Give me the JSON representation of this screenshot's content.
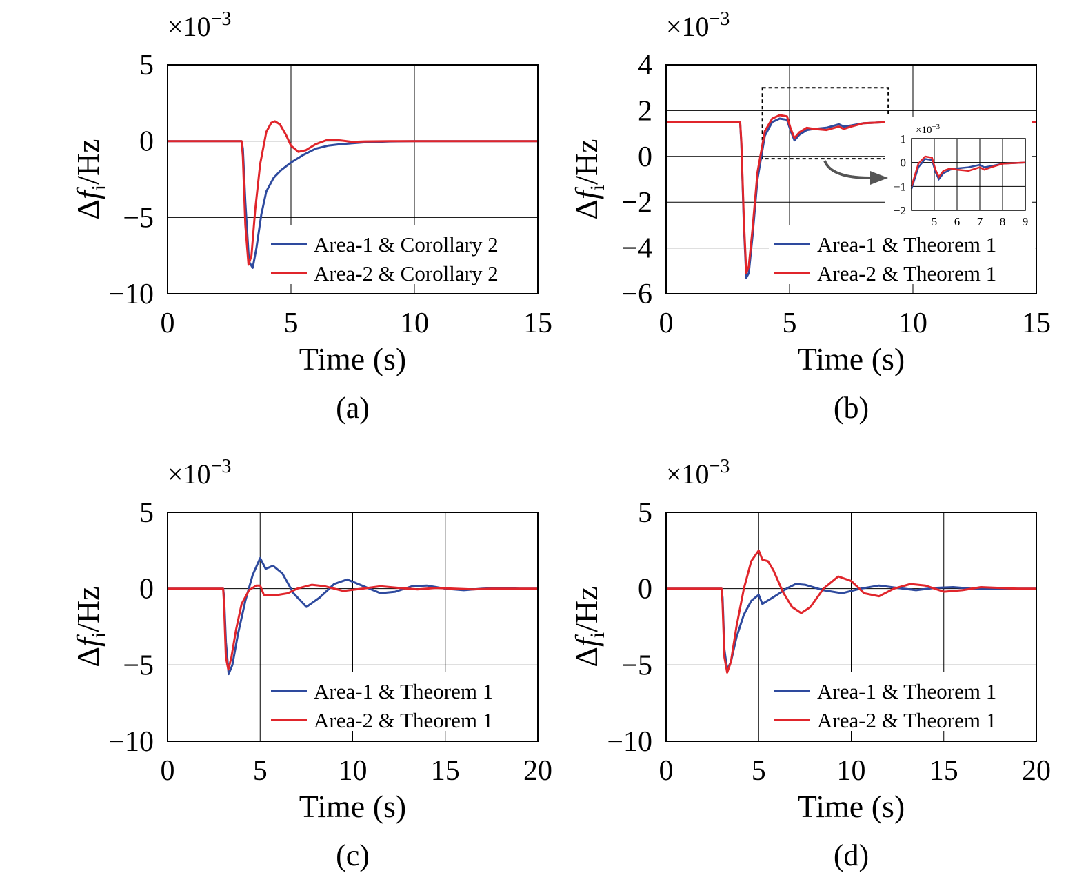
{
  "colors": {
    "area1": "#2e4a9e",
    "area2": "#e0252b",
    "axis": "#000000",
    "grid": "#000000"
  },
  "chart_data": [
    {
      "id": "a",
      "type": "line",
      "panel_label": "(a)",
      "scale_label": "×10",
      "scale_exp": "−3",
      "ylabel": "Δf",
      "ylabel_sub": "i",
      "ylabel_unit": "/Hz",
      "xlabel": "Time (s)",
      "xlim": [
        0,
        15
      ],
      "ylim": [
        -10,
        5
      ],
      "xticks": [
        0,
        5,
        10,
        15
      ],
      "xtick_labels": [
        "0",
        "5",
        "10",
        "15"
      ],
      "yticks": [
        -10,
        -5,
        0,
        5
      ],
      "ytick_labels": [
        "−10",
        "−5",
        "0",
        "5"
      ],
      "grid": true,
      "legend_position": "bottom-right",
      "series": [
        {
          "name": "Area-1 & Corollary 2",
          "color_key": "area1",
          "x": [
            0,
            3.0,
            3.05,
            3.15,
            3.3,
            3.45,
            3.6,
            3.8,
            4.0,
            4.3,
            4.6,
            5.0,
            5.5,
            6.0,
            6.5,
            7.0,
            8.0,
            9.0,
            10.0,
            12.0,
            15.0
          ],
          "y": [
            0,
            0,
            -0.5,
            -4.0,
            -7.9,
            -8.3,
            -7.0,
            -4.8,
            -3.3,
            -2.4,
            -1.9,
            -1.4,
            -0.9,
            -0.5,
            -0.3,
            -0.2,
            -0.08,
            -0.02,
            0,
            0,
            0
          ]
        },
        {
          "name": "Area-2 & Corollary 2",
          "color_key": "area2",
          "x": [
            0,
            3.0,
            3.05,
            3.15,
            3.28,
            3.4,
            3.55,
            3.75,
            4.0,
            4.2,
            4.35,
            4.55,
            4.8,
            5.0,
            5.3,
            5.6,
            6.0,
            6.5,
            7.0,
            7.5,
            8.0,
            9.0,
            10.0,
            15.0
          ],
          "y": [
            0,
            0,
            -1.0,
            -5.5,
            -8.1,
            -7.5,
            -4.5,
            -1.5,
            0.6,
            1.2,
            1.3,
            1.1,
            0.4,
            -0.3,
            -0.7,
            -0.6,
            -0.2,
            0.1,
            0.05,
            -0.05,
            -0.02,
            0,
            0,
            0
          ]
        }
      ]
    },
    {
      "id": "b",
      "type": "line",
      "panel_label": "(b)",
      "scale_label": "×10",
      "scale_exp": "−3",
      "ylabel": "Δf",
      "ylabel_sub": "i",
      "ylabel_unit": "/Hz",
      "xlabel": "Time (s)",
      "xlim": [
        0,
        15
      ],
      "ylim": [
        -6,
        4
      ],
      "xticks": [
        0,
        5,
        10,
        15
      ],
      "xtick_labels": [
        "0",
        "5",
        "10",
        "15"
      ],
      "yticks": [
        -6,
        -4,
        -2,
        0,
        2,
        4
      ],
      "ytick_labels": [
        "−6",
        "−4",
        "−2",
        "0",
        "2",
        "4"
      ],
      "grid": true,
      "legend_position": "bottom-right",
      "series": [
        {
          "name": "Area-1 & Theorem 1",
          "color_key": "area1",
          "x": [
            0,
            3.0,
            3.05,
            3.15,
            3.25,
            3.35,
            3.5,
            3.7,
            4.0,
            4.3,
            4.6,
            4.9,
            5.05,
            5.2,
            5.4,
            5.7,
            6.0,
            6.5,
            7.0,
            7.2,
            7.5,
            8.0,
            9.0,
            10.0,
            15.0
          ],
          "y": [
            1.5,
            1.5,
            0.5,
            -3.0,
            -5.3,
            -5.1,
            -3.5,
            -1.0,
            0.9,
            1.5,
            1.65,
            1.6,
            1.1,
            0.7,
            0.95,
            1.15,
            1.2,
            1.25,
            1.4,
            1.3,
            1.35,
            1.45,
            1.5,
            1.5,
            1.5
          ]
        },
        {
          "name": "Area-2 & Theorem 1",
          "color_key": "area2",
          "x": [
            0,
            3.0,
            3.05,
            3.15,
            3.25,
            3.35,
            3.5,
            3.7,
            4.0,
            4.3,
            4.6,
            4.9,
            5.05,
            5.2,
            5.4,
            5.7,
            6.0,
            6.5,
            7.0,
            7.2,
            7.5,
            8.0,
            9.0,
            10.0,
            15.0
          ],
          "y": [
            1.5,
            1.5,
            0.6,
            -2.8,
            -5.1,
            -4.8,
            -3.2,
            -0.7,
            1.1,
            1.65,
            1.8,
            1.75,
            1.2,
            0.8,
            1.05,
            1.25,
            1.2,
            1.15,
            1.3,
            1.2,
            1.3,
            1.45,
            1.5,
            1.5,
            1.5
          ]
        }
      ],
      "zoom_box": {
        "xlim": [
          3.9,
          9.0
        ],
        "ylim": [
          -0.1,
          3.0
        ]
      },
      "inset": {
        "scale_label": "×10",
        "scale_exp": "−3",
        "xlim": [
          4,
          9
        ],
        "ylim": [
          -2,
          1
        ],
        "xticks": [
          5,
          6,
          7,
          8,
          9
        ],
        "xtick_labels": [
          "5",
          "6",
          "7",
          "8",
          "9"
        ],
        "yticks": [
          -2,
          -1,
          0,
          1
        ],
        "ytick_labels": [
          "−2",
          "−1",
          "0",
          "1"
        ],
        "series": [
          {
            "color_key": "area1",
            "x": [
              4.0,
              4.3,
              4.6,
              4.9,
              5.05,
              5.2,
              5.4,
              5.7,
              6.0,
              6.5,
              7.0,
              7.2,
              7.5,
              8.0,
              9.0
            ],
            "y": [
              -1.1,
              -0.2,
              0.15,
              0.1,
              -0.4,
              -0.7,
              -0.45,
              -0.3,
              -0.25,
              -0.2,
              -0.1,
              -0.2,
              -0.15,
              -0.05,
              0
            ]
          },
          {
            "color_key": "area2",
            "x": [
              4.0,
              4.3,
              4.6,
              4.9,
              5.05,
              5.2,
              5.4,
              5.7,
              6.0,
              6.5,
              7.0,
              7.2,
              7.5,
              8.0,
              9.0
            ],
            "y": [
              -1.0,
              -0.05,
              0.25,
              0.2,
              -0.3,
              -0.6,
              -0.35,
              -0.25,
              -0.3,
              -0.35,
              -0.2,
              -0.3,
              -0.2,
              -0.05,
              0
            ]
          }
        ]
      }
    },
    {
      "id": "c",
      "type": "line",
      "panel_label": "(c)",
      "scale_label": "×10",
      "scale_exp": "−3",
      "ylabel": "Δf",
      "ylabel_sub": "i",
      "ylabel_unit": "/Hz",
      "xlabel": "Time (s)",
      "xlim": [
        0,
        20
      ],
      "ylim": [
        -10,
        5
      ],
      "xticks": [
        0,
        5,
        10,
        15,
        20
      ],
      "xtick_labels": [
        "0",
        "5",
        "10",
        "15",
        "20"
      ],
      "yticks": [
        -10,
        -5,
        0,
        5
      ],
      "ytick_labels": [
        "−10",
        "−5",
        "0",
        "5"
      ],
      "grid": true,
      "legend_position": "bottom-right",
      "series": [
        {
          "name": "Area-1 & Theorem 1",
          "color_key": "area1",
          "x": [
            0,
            3.0,
            3.05,
            3.15,
            3.3,
            3.5,
            3.8,
            4.2,
            4.6,
            5.0,
            5.3,
            5.7,
            6.2,
            6.8,
            7.5,
            8.2,
            9.0,
            9.7,
            10.5,
            11.5,
            12.3,
            13.2,
            14.0,
            15.0,
            16.0,
            17.0,
            18.0,
            19.0,
            20.0
          ],
          "y": [
            0,
            0,
            -0.5,
            -3.5,
            -5.6,
            -5.0,
            -3.0,
            -0.8,
            0.9,
            2.0,
            1.3,
            1.5,
            1.0,
            -0.3,
            -1.2,
            -0.6,
            0.3,
            0.6,
            0.2,
            -0.3,
            -0.2,
            0.15,
            0.2,
            0,
            -0.1,
            0,
            0.05,
            0,
            0
          ]
        },
        {
          "name": "Area-2 & Theorem 1",
          "color_key": "area2",
          "x": [
            0,
            3.0,
            3.05,
            3.15,
            3.28,
            3.45,
            3.7,
            4.0,
            4.4,
            4.8,
            5.0,
            5.2,
            5.6,
            6.0,
            6.5,
            7.0,
            7.8,
            8.5,
            9.5,
            10.5,
            11.5,
            12.5,
            13.5,
            14.5,
            15.5,
            16.5,
            17.5,
            18.5,
            20.0
          ],
          "y": [
            0,
            0,
            -1.0,
            -4.5,
            -5.3,
            -4.5,
            -2.7,
            -1.0,
            -0.1,
            0.2,
            0.2,
            -0.4,
            -0.4,
            -0.4,
            -0.3,
            0,
            0.25,
            0.15,
            -0.15,
            0,
            0.15,
            0.05,
            -0.05,
            0.05,
            0,
            -0.05,
            0,
            0,
            0
          ]
        }
      ]
    },
    {
      "id": "d",
      "type": "line",
      "panel_label": "(d)",
      "scale_label": "×10",
      "scale_exp": "−3",
      "ylabel": "Δf",
      "ylabel_sub": "i",
      "ylabel_unit": "/Hz",
      "xlabel": "Time (s)",
      "xlim": [
        0,
        20
      ],
      "ylim": [
        -10,
        5
      ],
      "xticks": [
        0,
        5,
        10,
        15,
        20
      ],
      "xtick_labels": [
        "0",
        "5",
        "10",
        "15",
        "20"
      ],
      "yticks": [
        -10,
        -5,
        0,
        5
      ],
      "ytick_labels": [
        "−10",
        "−5",
        "0",
        "5"
      ],
      "grid": true,
      "legend_position": "bottom-right",
      "series": [
        {
          "name": "Area-1 & Theorem 1",
          "color_key": "area1",
          "x": [
            0,
            3.0,
            3.05,
            3.15,
            3.3,
            3.5,
            3.8,
            4.2,
            4.6,
            4.9,
            5.0,
            5.2,
            5.6,
            6.0,
            6.5,
            7.0,
            7.5,
            8.5,
            9.5,
            10.5,
            11.5,
            12.5,
            13.5,
            14.5,
            15.5,
            16.5,
            17.5,
            18.5,
            20.0
          ],
          "y": [
            0,
            0,
            -0.6,
            -4.0,
            -5.3,
            -4.8,
            -3.2,
            -1.7,
            -0.8,
            -0.5,
            -0.4,
            -1.0,
            -0.7,
            -0.4,
            0,
            0.3,
            0.25,
            -0.1,
            -0.3,
            0,
            0.2,
            0.05,
            -0.1,
            0.05,
            0.1,
            0,
            0,
            0,
            0
          ]
        },
        {
          "name": "Area-2 & Theorem 1",
          "color_key": "area2",
          "x": [
            0,
            3.0,
            3.05,
            3.15,
            3.3,
            3.5,
            3.8,
            4.2,
            4.6,
            5.0,
            5.2,
            5.5,
            5.8,
            6.3,
            6.8,
            7.3,
            7.8,
            8.5,
            9.3,
            10.0,
            10.7,
            11.5,
            12.3,
            13.2,
            14.0,
            15.0,
            16.0,
            17.0,
            18.0,
            19.0,
            20.0
          ],
          "y": [
            0,
            0,
            -1.0,
            -4.5,
            -5.5,
            -4.8,
            -2.5,
            0,
            1.8,
            2.5,
            1.9,
            1.8,
            1.2,
            -0.2,
            -1.2,
            -1.6,
            -1.2,
            0,
            0.8,
            0.5,
            -0.3,
            -0.5,
            0,
            0.3,
            0.2,
            -0.2,
            -0.1,
            0.1,
            0.05,
            0,
            0
          ]
        }
      ]
    }
  ]
}
